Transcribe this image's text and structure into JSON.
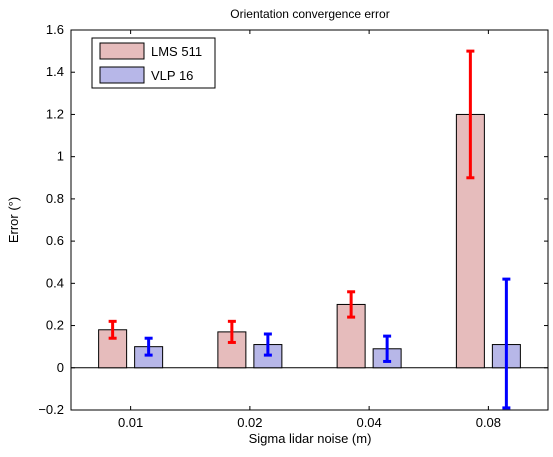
{
  "chart_data": {
    "type": "bar",
    "title": "Orientation convergence error",
    "xlabel": "Sigma lidar noise (m)",
    "ylabel": "Error (°)",
    "categories": [
      "0.01",
      "0.02",
      "0.04",
      "0.08"
    ],
    "ylim": [
      -0.2,
      1.6
    ],
    "yticks": [
      "−0.2",
      "0",
      "0.2",
      "0.4",
      "0.6",
      "0.8",
      "1",
      "1.2",
      "1.4",
      "1.6"
    ],
    "ytick_values": [
      -0.2,
      0,
      0.2,
      0.4,
      0.6,
      0.8,
      1,
      1.2,
      1.4,
      1.6
    ],
    "grid": false,
    "legend_position": "top-left",
    "series": [
      {
        "name": "LMS 511",
        "values": [
          0.18,
          0.17,
          0.3,
          1.2
        ],
        "error_low": [
          0.14,
          0.12,
          0.24,
          0.9
        ],
        "error_high": [
          0.22,
          0.22,
          0.36,
          1.5
        ],
        "bar_color": "#e6bcbc",
        "error_color": "#ff0000"
      },
      {
        "name": "VLP 16",
        "values": [
          0.1,
          0.11,
          0.09,
          0.11
        ],
        "error_low": [
          0.06,
          0.06,
          0.03,
          -0.19
        ],
        "error_high": [
          0.14,
          0.16,
          0.15,
          0.42
        ],
        "bar_color": "#b7b7e8",
        "error_color": "#0000ff"
      }
    ]
  }
}
